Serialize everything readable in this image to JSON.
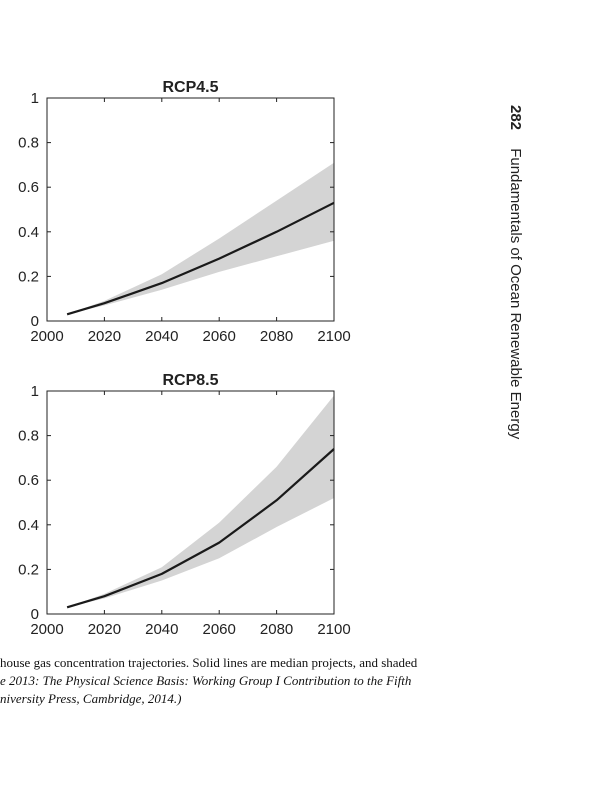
{
  "page": {
    "page_number": "282",
    "running_title": "Fundamentals of Ocean Renewable Energy"
  },
  "caption": {
    "line1": "house gas concentration trajectories. Solid lines are median projects, and shaded",
    "line2": "e 2013: The Physical Science Basis: Working Group I Contribution to the Fifth",
    "line3": "niversity Press, Cambridge, 2014.)"
  },
  "colors": {
    "band": "#d4d4d4",
    "median": "#1a1a1a",
    "axis": "#222222"
  },
  "chart_data": [
    {
      "type": "area",
      "title": "RCP4.5",
      "xlim": [
        2000,
        2100
      ],
      "ylim": [
        0,
        1
      ],
      "xticks": [
        2000,
        2020,
        2040,
        2060,
        2080,
        2100
      ],
      "yticks": [
        0,
        0.2,
        0.4,
        0.6,
        0.8,
        1
      ],
      "grid": false,
      "x": [
        2007,
        2020,
        2040,
        2060,
        2080,
        2100
      ],
      "series": [
        {
          "role": "median",
          "values": [
            0.03,
            0.08,
            0.17,
            0.28,
            0.4,
            0.53
          ]
        },
        {
          "role": "lower",
          "values": [
            0.03,
            0.07,
            0.14,
            0.22,
            0.29,
            0.36
          ]
        },
        {
          "role": "upper",
          "values": [
            0.03,
            0.09,
            0.21,
            0.37,
            0.54,
            0.71
          ]
        }
      ]
    },
    {
      "type": "area",
      "title": "RCP8.5",
      "xlim": [
        2000,
        2100
      ],
      "ylim": [
        0,
        1
      ],
      "xticks": [
        2000,
        2020,
        2040,
        2060,
        2080,
        2100
      ],
      "yticks": [
        0,
        0.2,
        0.4,
        0.6,
        0.8,
        1
      ],
      "grid": false,
      "x": [
        2007,
        2020,
        2040,
        2060,
        2080,
        2100
      ],
      "series": [
        {
          "role": "median",
          "values": [
            0.03,
            0.08,
            0.18,
            0.32,
            0.51,
            0.74
          ]
        },
        {
          "role": "lower",
          "values": [
            0.03,
            0.07,
            0.15,
            0.25,
            0.39,
            0.52
          ]
        },
        {
          "role": "upper",
          "values": [
            0.03,
            0.09,
            0.21,
            0.41,
            0.66,
            0.98
          ]
        }
      ]
    }
  ]
}
